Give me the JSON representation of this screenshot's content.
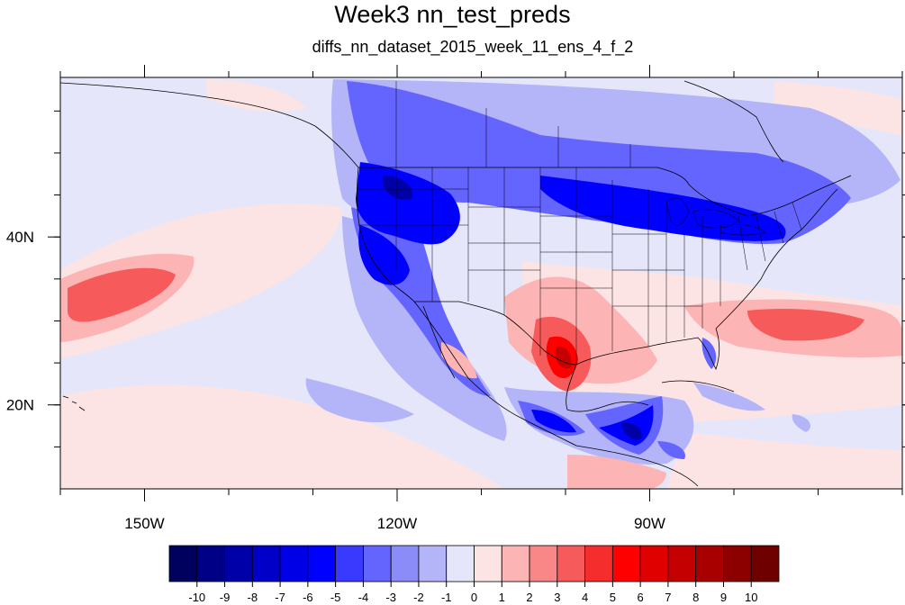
{
  "title": "Week3 nn_test_preds",
  "subtitle": "diffs_nn_dataset_2015_week_11_ens_4_f_2",
  "map": {
    "lon_range": [
      -160,
      -60
    ],
    "lat_range": [
      10,
      59
    ],
    "x_ticks": [
      {
        "lon": -150,
        "label": "150W"
      },
      {
        "lon": -120,
        "label": "120W"
      },
      {
        "lon": -90,
        "label": "90W"
      }
    ],
    "y_ticks": [
      {
        "lat": 40,
        "label": "40N"
      },
      {
        "lat": 20,
        "label": "20N"
      }
    ]
  },
  "colorbar": {
    "labels": [
      "-10",
      "-9",
      "-8",
      "-7",
      "-6",
      "-5",
      "-4",
      "-3",
      "-2",
      "-1",
      "0",
      "1",
      "2",
      "3",
      "4",
      "5",
      "6",
      "7",
      "8",
      "9",
      "10"
    ],
    "colors": [
      "#00005e",
      "#000087",
      "#0000a8",
      "#0000c9",
      "#0000e6",
      "#0000ff",
      "#3a3aff",
      "#6464ff",
      "#8c8cf8",
      "#b4b4f8",
      "#e6e6fa",
      "#fde4e4",
      "#fcb4b4",
      "#fa8787",
      "#f75a5a",
      "#f52d2d",
      "#ff0000",
      "#e00000",
      "#c40000",
      "#a80000",
      "#8c0000",
      "#6e0000"
    ]
  },
  "colors": {
    "background_field": "#e6e6fa"
  }
}
